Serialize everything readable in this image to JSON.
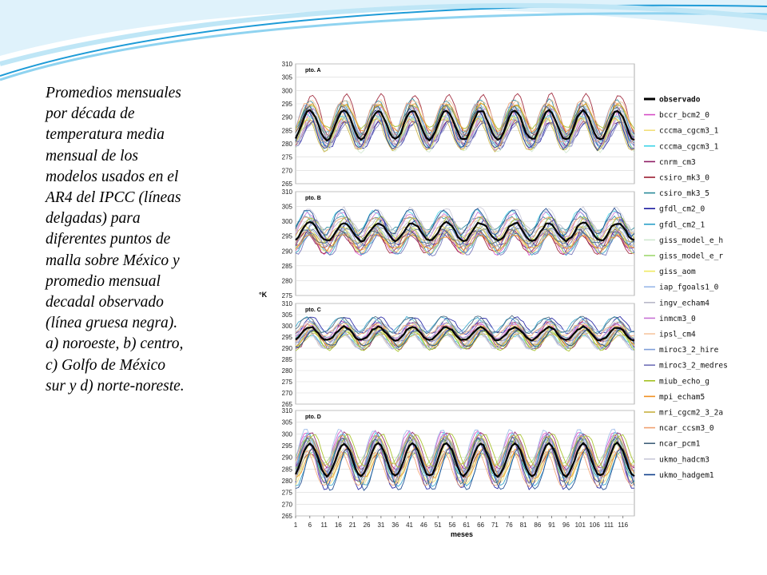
{
  "caption_lines": [
    "Promedios mensuales",
    "por década de",
    "temperatura media",
    "mensual  de los",
    "modelos usados en el",
    "AR4  del IPCC (líneas",
    "delgadas) para",
    "diferentes puntos de",
    "malla sobre México y",
    "promedio mensual",
    "decadal observado",
    "(línea gruesa negra).",
    "a) noroeste, b) centro,",
    "c) Golfo de México",
    "sur y d) norte-noreste."
  ],
  "colors": {
    "swoosh_dark": "#1e9bd7",
    "swoosh_light": "#8fd3f0"
  },
  "chart_data": {
    "type": "line",
    "ylabel": "°K",
    "xlabel": "meses",
    "x_ticks": [
      "1",
      "6",
      "11",
      "16",
      "21",
      "26",
      "31",
      "36",
      "41",
      "46",
      "51",
      "56",
      "61",
      "66",
      "71",
      "76",
      "81",
      "86",
      "91",
      "96",
      "101",
      "106",
      "111",
      "116"
    ],
    "xlim": [
      1,
      120
    ],
    "grid": true,
    "legend_position": "right",
    "legend": [
      {
        "name": "observado",
        "color": "#000000",
        "bold": true
      },
      {
        "name": "bccr_bcm2_0",
        "color": "#d64ec6"
      },
      {
        "name": "cccma_cgcm3_1",
        "color": "#f2e07a"
      },
      {
        "name": "cccma_cgcm3_1",
        "color": "#3fd4e8"
      },
      {
        "name": "cnrm_cm3",
        "color": "#8e1c64"
      },
      {
        "name": "csiro_mk3_0",
        "color": "#9a1c30"
      },
      {
        "name": "csiro_mk3_5",
        "color": "#2a8a9a"
      },
      {
        "name": "gfdl_cm2_0",
        "color": "#1a1aa0"
      },
      {
        "name": "gfdl_cm2_1",
        "color": "#2aa0c8"
      },
      {
        "name": "giss_model_e_h",
        "color": "#cfe8cf"
      },
      {
        "name": "giss_model_e_r",
        "color": "#9ed86e"
      },
      {
        "name": "giss_aom",
        "color": "#f0ea60"
      },
      {
        "name": "iap_fgoals1_0",
        "color": "#9ab8e8"
      },
      {
        "name": "ingv_echam4",
        "color": "#b8b8c8"
      },
      {
        "name": "inmcm3_0",
        "color": "#c873d6"
      },
      {
        "name": "ipsl_cm4",
        "color": "#f6c7a0"
      },
      {
        "name": "miroc3_2_hire",
        "color": "#7f9fd8"
      },
      {
        "name": "miroc3_2_medres",
        "color": "#7070b8"
      },
      {
        "name": "miub_echo_g",
        "color": "#a4c020"
      },
      {
        "name": "mpi_echam5",
        "color": "#f09020"
      },
      {
        "name": "mri_cgcm2_3_2a",
        "color": "#c8b040"
      },
      {
        "name": "ncar_ccsm3_0",
        "color": "#f0a070"
      },
      {
        "name": "ncar_pcm1",
        "color": "#40607a"
      },
      {
        "name": "ukmo_hadcm3",
        "color": "#c8c8d8"
      },
      {
        "name": "ukmo_hadgem1",
        "color": "#0f3f8a"
      }
    ],
    "panels": [
      {
        "label": "pto. A",
        "ylim": [
          265,
          310
        ],
        "yticks": [
          "310",
          "305",
          "300",
          "295",
          "290",
          "285",
          "280",
          "275",
          "270",
          "265"
        ],
        "period": 12,
        "observado": {
          "mean": 287.0,
          "amplitude": 5.5
        }
      },
      {
        "label": "pto. B",
        "ylim": [
          275,
          310
        ],
        "yticks": [
          "310",
          "305",
          "300",
          "295",
          "290",
          "285",
          "280",
          "275"
        ],
        "period": 12,
        "observado": {
          "mean": 296.5,
          "amplitude": 3.0
        }
      },
      {
        "label": "pto. C",
        "ylim": [
          265,
          310
        ],
        "yticks": [
          "310",
          "305",
          "300",
          "295",
          "290",
          "285",
          "280",
          "275",
          "270",
          "265"
        ],
        "period": 12,
        "observado": {
          "mean": 296.5,
          "amplitude": 3.0
        }
      },
      {
        "label": "pto. D",
        "ylim": [
          265,
          310
        ],
        "yticks": [
          "310",
          "305",
          "300",
          "295",
          "290",
          "285",
          "280",
          "275",
          "270",
          "265"
        ],
        "period": 12,
        "observado": {
          "mean": 289.0,
          "amplitude": 7.0
        }
      }
    ]
  }
}
